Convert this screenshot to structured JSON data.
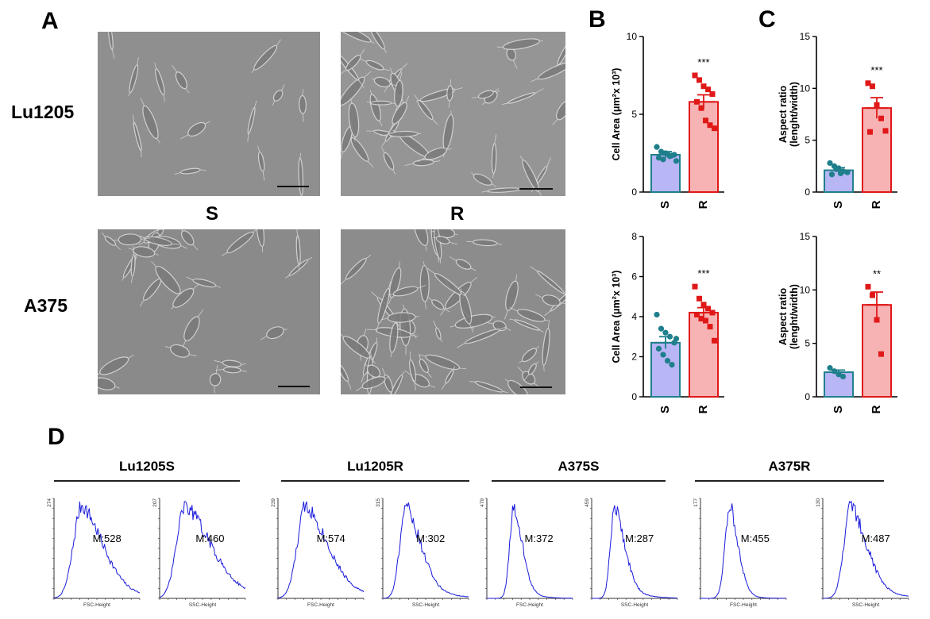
{
  "panels": {
    "A": {
      "letter": "A",
      "row_labels": [
        "Lu1205",
        "A375"
      ],
      "conditions": [
        "S",
        "R"
      ]
    },
    "B": {
      "letter": "B"
    },
    "C": {
      "letter": "C"
    },
    "D": {
      "letter": "D"
    }
  },
  "colors": {
    "s_fill": "#b8b6f5",
    "s_edge": "#1f7f8c",
    "s_point": "#1f7f8c",
    "r_fill": "#f7b3b3",
    "r_edge": "#e01818",
    "r_point": "#e01818",
    "hist_line": "#1a1adc"
  },
  "chart_data": [
    {
      "id": "B-top",
      "type": "bar",
      "ylabel": "Cell Area (μm²x 10³)",
      "ylim": [
        0,
        10
      ],
      "yticks": [
        "0",
        "5",
        "10"
      ],
      "categories": [
        "S",
        "R"
      ],
      "values": [
        2.4,
        5.8
      ],
      "sem": [
        0.2,
        0.45
      ],
      "significance": "***",
      "points": [
        [
          2.9,
          2.6,
          2.5,
          2.3,
          2.4,
          2.2,
          2.1,
          2.45,
          2.35,
          2.0
        ],
        [
          7.5,
          7.2,
          6.8,
          6.6,
          6.3,
          5.8,
          5.4,
          4.6,
          4.3,
          4.1
        ]
      ]
    },
    {
      "id": "C-top",
      "type": "bar",
      "ylabel": "Aspect ratio (lenght/width)",
      "ylim": [
        0,
        15
      ],
      "yticks": [
        "0",
        "5",
        "10",
        "15"
      ],
      "categories": [
        "S",
        "R"
      ],
      "values": [
        2.1,
        8.1
      ],
      "sem": [
        0.25,
        1.0
      ],
      "significance": "***",
      "points": [
        [
          2.8,
          2.5,
          2.3,
          2.0,
          1.9,
          1.7,
          2.2,
          1.8
        ],
        [
          10.5,
          10.2,
          8.4,
          7.1,
          5.9,
          5.8
        ]
      ]
    },
    {
      "id": "B-bottom",
      "type": "bar",
      "ylabel": "Cell Area (μm²x 10³)",
      "ylim": [
        0,
        8
      ],
      "yticks": [
        "0",
        "2",
        "4",
        "6",
        "8"
      ],
      "categories": [
        "S",
        "R"
      ],
      "values": [
        2.7,
        4.2
      ],
      "sem": [
        0.3,
        0.25
      ],
      "significance": "***",
      "points": [
        [
          4.1,
          3.4,
          3.2,
          3.0,
          2.7,
          2.4,
          2.1,
          1.8,
          1.6,
          2.9
        ],
        [
          5.5,
          4.9,
          4.6,
          4.4,
          4.2,
          4.1,
          3.9,
          3.8,
          3.5,
          2.8
        ]
      ]
    },
    {
      "id": "C-bottom",
      "type": "bar",
      "ylabel": "Aspect ratio (lenght/width)",
      "ylim": [
        0,
        15
      ],
      "yticks": [
        "0",
        "5",
        "10",
        "15"
      ],
      "categories": [
        "S",
        "R"
      ],
      "values": [
        2.3,
        8.6
      ],
      "sem": [
        0.2,
        1.2
      ],
      "significance": "**",
      "points": [
        [
          2.7,
          2.4,
          2.1,
          1.9
        ],
        [
          10.3,
          9.5,
          7.2,
          4.0
        ]
      ]
    }
  ],
  "histograms": {
    "groups": [
      "Lu1205S",
      "Lu1205R",
      "A375S",
      "A375R"
    ],
    "plots": [
      {
        "max_label": "274",
        "xlabel": "FSC-Height",
        "median": "M:528",
        "peak": 0.33,
        "width": 0.1,
        "tail": 0.3
      },
      {
        "max_label": "207",
        "xlabel": "SSC-Height",
        "median": "M:460",
        "peak": 0.3,
        "width": 0.1,
        "tail": 0.4
      },
      {
        "max_label": "239",
        "xlabel": "FSC-Height",
        "median": "M:574",
        "peak": 0.33,
        "width": 0.1,
        "tail": 0.32
      },
      {
        "max_label": "315",
        "xlabel": "SSC-Height",
        "median": "M:302",
        "peak": 0.27,
        "width": 0.07,
        "tail": 0.22
      },
      {
        "max_label": "479",
        "xlabel": "FSC-Height",
        "median": "M:372",
        "peak": 0.32,
        "width": 0.05,
        "tail": 0.1
      },
      {
        "max_label": "459",
        "xlabel": "SSC-Height",
        "median": "M:287",
        "peak": 0.27,
        "width": 0.05,
        "tail": 0.14
      },
      {
        "max_label": "177",
        "xlabel": "FSC-Height",
        "median": "M:455",
        "peak": 0.35,
        "width": 0.06,
        "tail": 0.08
      },
      {
        "max_label": "130",
        "xlabel": "SSC-Height",
        "median": "M:487",
        "peak": 0.33,
        "width": 0.08,
        "tail": 0.22
      }
    ]
  }
}
